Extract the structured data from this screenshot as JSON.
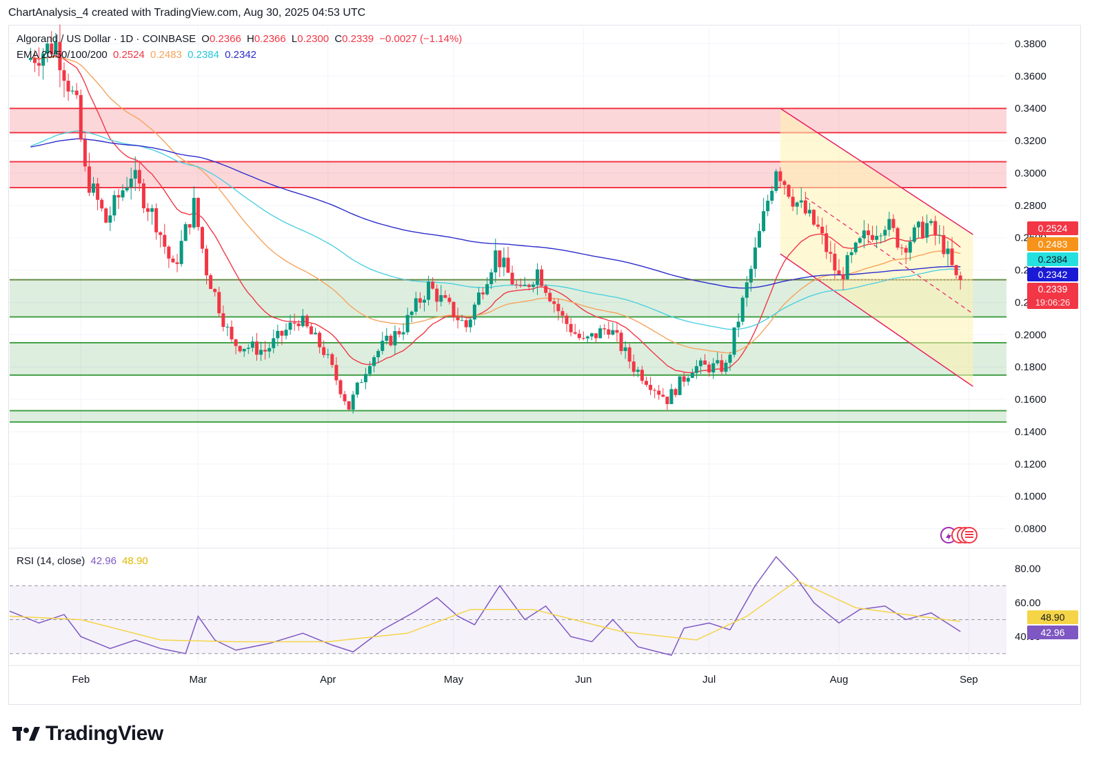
{
  "header": {
    "author_line": "ChartAnalysis_4 created with TradingView.com, Aug 30, 2025 04:53 UTC"
  },
  "legend": {
    "symbol": "Algorand / US Dollar · 1D · COINBASE",
    "o_label": "O",
    "o_value": "0.2366",
    "h_label": "H",
    "h_value": "0.2366",
    "l_label": "L",
    "l_value": "0.2300",
    "c_label": "C",
    "c_value": "0.2339",
    "change": "−0.0027 (−1.14%)",
    "ema_label": "EMA 20/50/100/200",
    "ema20": "0.2524",
    "ema50": "0.2483",
    "ema100": "0.2384",
    "ema200": "0.2342",
    "rsi_label": "RSI (14, close)",
    "rsi_value": "42.96",
    "rsi_ma_value": "48.90"
  },
  "badges": {
    "ema20": "0.2524",
    "ema50": "0.2483",
    "ema100": "0.2384",
    "ema200": "0.2342",
    "price": "0.2339",
    "countdown": "19:06:26",
    "rsi_ma": "48.90",
    "rsi": "42.96"
  },
  "colors": {
    "up": "#089981",
    "down": "#f23645",
    "ema20": "#f23645",
    "ema50": "#f7a35c",
    "ema100": "#4dd0e1",
    "ema200": "#2b2bcc",
    "rsi": "#7e57c2",
    "rsi_ma": "#f5d547",
    "resistance": "#f23645",
    "support": "#43a047",
    "channel": "#fff3b0"
  },
  "footer": {
    "brand": "TradingView"
  },
  "chart_data": [
    {
      "type": "candlestick",
      "title": "Algorand / US Dollar · 1D · COINBASE",
      "ylim": [
        0.07,
        0.39
      ],
      "y_ticks": [
        "0.3800",
        "0.3600",
        "0.3400",
        "0.3200",
        "0.3000",
        "0.2800",
        "0.2600",
        "0.2400",
        "0.2200",
        "0.2000",
        "0.1800",
        "0.1600",
        "0.1400",
        "0.1200",
        "0.1000",
        "0.0800"
      ],
      "x_ticks": [
        "Feb",
        "Mar",
        "Apr",
        "May",
        "Jun",
        "Jul",
        "Aug",
        "Sep"
      ],
      "x_tick_dates": [
        "2025-02-01",
        "2025-03-01",
        "2025-04-01",
        "2025-05-01",
        "2025-06-01",
        "2025-07-01",
        "2025-08-01",
        "2025-09-01"
      ],
      "date_range": [
        "2025-01-15",
        "2025-09-10"
      ],
      "anchor_points": [
        [
          "2025-01-20",
          0.37
        ],
        [
          "2025-01-27",
          0.38
        ],
        [
          "2025-02-01",
          0.34
        ],
        [
          "2025-02-03",
          0.3
        ],
        [
          "2025-02-08",
          0.27
        ],
        [
          "2025-02-14",
          0.3
        ],
        [
          "2025-02-20",
          0.27
        ],
        [
          "2025-02-24",
          0.24
        ],
        [
          "2025-03-01",
          0.28
        ],
        [
          "2025-03-04",
          0.24
        ],
        [
          "2025-03-10",
          0.195
        ],
        [
          "2025-03-18",
          0.19
        ],
        [
          "2025-03-26",
          0.21
        ],
        [
          "2025-04-01",
          0.19
        ],
        [
          "2025-04-07",
          0.155
        ],
        [
          "2025-04-12",
          0.185
        ],
        [
          "2025-04-20",
          0.205
        ],
        [
          "2025-04-26",
          0.23
        ],
        [
          "2025-05-05",
          0.205
        ],
        [
          "2025-05-12",
          0.25
        ],
        [
          "2025-05-18",
          0.225
        ],
        [
          "2025-05-22",
          0.24
        ],
        [
          "2025-05-28",
          0.21
        ],
        [
          "2025-06-02",
          0.195
        ],
        [
          "2025-06-08",
          0.205
        ],
        [
          "2025-06-14",
          0.18
        ],
        [
          "2025-06-22",
          0.16
        ],
        [
          "2025-06-28",
          0.18
        ],
        [
          "2025-07-06",
          0.18
        ],
        [
          "2025-07-12",
          0.24
        ],
        [
          "2025-07-18",
          0.305
        ],
        [
          "2025-07-22",
          0.285
        ],
        [
          "2025-07-28",
          0.265
        ],
        [
          "2025-08-02",
          0.235
        ],
        [
          "2025-08-08",
          0.26
        ],
        [
          "2025-08-13",
          0.27
        ],
        [
          "2025-08-17",
          0.255
        ],
        [
          "2025-08-23",
          0.268
        ],
        [
          "2025-08-27",
          0.255
        ],
        [
          "2025-08-30",
          0.2339
        ]
      ],
      "last_candle": {
        "open": 0.2366,
        "high": 0.2366,
        "low": 0.23,
        "close": 0.2339
      },
      "resistance_zones": [
        [
          0.325,
          0.34
        ],
        [
          0.291,
          0.307
        ]
      ],
      "support_zones": [
        [
          0.211,
          0.234
        ],
        [
          0.175,
          0.195
        ],
        [
          0.146,
          0.153
        ]
      ],
      "descending_channel": {
        "upper": [
          [
            "2025-07-18",
            0.34
          ],
          [
            "2025-09-02",
            0.262
          ]
        ],
        "lower": [
          [
            "2025-07-18",
            0.25
          ],
          [
            "2025-09-02",
            0.168
          ]
        ],
        "mid": [
          [
            "2025-07-24",
            0.285
          ],
          [
            "2025-09-02",
            0.213
          ]
        ]
      },
      "ema_last": {
        "ema20": 0.2524,
        "ema50": 0.2483,
        "ema100": 0.2384,
        "ema200": 0.2342
      }
    },
    {
      "type": "line",
      "title": "RSI (14, close)",
      "ylim": [
        25,
        90
      ],
      "y_ticks": [
        "80.00",
        "60.00",
        "40.00"
      ],
      "bands": [
        30,
        70,
        50
      ],
      "rsi_points": [
        [
          "2025-01-15",
          55
        ],
        [
          "2025-01-22",
          48
        ],
        [
          "2025-01-28",
          53
        ],
        [
          "2025-02-01",
          40
        ],
        [
          "2025-02-08",
          33
        ],
        [
          "2025-02-14",
          38
        ],
        [
          "2025-02-20",
          33
        ],
        [
          "2025-02-26",
          30
        ],
        [
          "2025-03-01",
          52
        ],
        [
          "2025-03-05",
          38
        ],
        [
          "2025-03-10",
          32
        ],
        [
          "2025-03-18",
          36
        ],
        [
          "2025-03-26",
          42
        ],
        [
          "2025-04-02",
          35
        ],
        [
          "2025-04-07",
          31
        ],
        [
          "2025-04-14",
          44
        ],
        [
          "2025-04-22",
          55
        ],
        [
          "2025-04-27",
          63
        ],
        [
          "2025-05-02",
          52
        ],
        [
          "2025-05-06",
          47
        ],
        [
          "2025-05-12",
          70
        ],
        [
          "2025-05-18",
          50
        ],
        [
          "2025-05-23",
          58
        ],
        [
          "2025-05-29",
          40
        ],
        [
          "2025-06-03",
          37
        ],
        [
          "2025-06-08",
          50
        ],
        [
          "2025-06-14",
          34
        ],
        [
          "2025-06-22",
          29
        ],
        [
          "2025-06-25",
          45
        ],
        [
          "2025-07-01",
          48
        ],
        [
          "2025-07-06",
          44
        ],
        [
          "2025-07-12",
          70
        ],
        [
          "2025-07-17",
          87
        ],
        [
          "2025-07-22",
          74
        ],
        [
          "2025-07-26",
          60
        ],
        [
          "2025-08-01",
          48
        ],
        [
          "2025-08-06",
          56
        ],
        [
          "2025-08-12",
          58
        ],
        [
          "2025-08-17",
          50
        ],
        [
          "2025-08-23",
          54
        ],
        [
          "2025-08-30",
          42.96
        ]
      ],
      "rsi_ma_points": [
        [
          "2025-01-15",
          52
        ],
        [
          "2025-02-01",
          50
        ],
        [
          "2025-02-20",
          38
        ],
        [
          "2025-03-10",
          37
        ],
        [
          "2025-04-01",
          37
        ],
        [
          "2025-04-20",
          42
        ],
        [
          "2025-05-05",
          56
        ],
        [
          "2025-05-20",
          56
        ],
        [
          "2025-06-10",
          43
        ],
        [
          "2025-06-28",
          38
        ],
        [
          "2025-07-10",
          52
        ],
        [
          "2025-07-22",
          73
        ],
        [
          "2025-08-05",
          57
        ],
        [
          "2025-08-20",
          52
        ],
        [
          "2025-08-30",
          48.9
        ]
      ]
    }
  ]
}
